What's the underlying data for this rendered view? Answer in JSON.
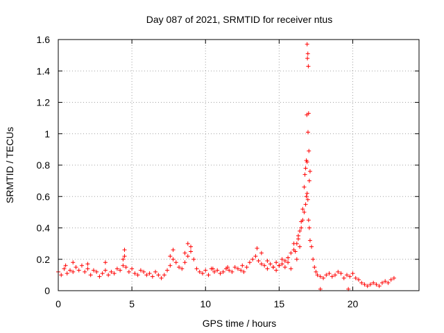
{
  "chart_data": {
    "type": "scatter",
    "title": "Day 087 of 2021, SRMTID for receiver ntus",
    "xlabel": "GPS time / hours",
    "ylabel": "SRMTID / TECUs",
    "xlim": [
      0,
      24.5
    ],
    "ylim": [
      0,
      1.6
    ],
    "xticks": [
      0,
      5,
      10,
      15,
      20
    ],
    "xtick_labels": [
      "0",
      "5",
      "10",
      "15",
      "20"
    ],
    "yticks": [
      0,
      0.2,
      0.4,
      0.6,
      0.8,
      1.0,
      1.2,
      1.4,
      1.6
    ],
    "ytick_labels": [
      "0",
      "0.2",
      "0.4",
      "0.6",
      "0.8",
      "1",
      "1.2",
      "1.4",
      "1.6"
    ],
    "grid": true,
    "marker": "+",
    "colors": {
      "points": "#ff0000",
      "axis": "#000000",
      "grid": "#a0a0a0"
    },
    "series": [
      {
        "name": "SRMTID",
        "x": [
          0.0,
          0.2,
          0.4,
          0.6,
          0.8,
          1.0,
          1.2,
          1.4,
          1.6,
          1.8,
          2.0,
          2.2,
          2.4,
          2.6,
          2.8,
          3.0,
          3.2,
          3.4,
          3.6,
          3.8,
          4.0,
          4.2,
          4.4,
          4.5,
          4.6,
          4.8,
          5.0,
          5.2,
          5.4,
          5.6,
          5.8,
          6.0,
          6.2,
          6.4,
          6.6,
          6.8,
          7.0,
          7.2,
          7.4,
          7.6,
          7.8,
          8.0,
          8.2,
          8.4,
          8.6,
          8.8,
          9.0,
          9.2,
          9.4,
          9.6,
          9.8,
          10.0,
          10.2,
          10.4,
          10.6,
          10.8,
          11.0,
          11.2,
          11.4,
          11.6,
          11.8,
          12.0,
          12.2,
          12.4,
          12.6,
          12.8,
          13.0,
          13.2,
          13.4,
          13.6,
          13.8,
          14.0,
          14.2,
          14.4,
          14.6,
          14.8,
          15.0,
          15.2,
          15.4,
          15.6,
          15.8,
          16.0,
          16.1,
          16.2,
          16.3,
          16.4,
          16.5,
          16.6,
          16.7,
          16.8,
          16.85,
          16.9,
          16.95,
          17.0,
          17.05,
          17.1,
          17.2,
          17.3,
          17.4,
          17.5,
          17.6,
          17.8,
          18.0,
          18.2,
          18.4,
          18.6,
          18.8,
          19.0,
          19.2,
          19.4,
          19.6,
          19.8,
          20.0,
          20.2,
          20.4,
          20.6,
          20.8,
          21.0,
          21.2,
          21.4,
          21.6,
          21.8,
          22.0,
          22.2,
          22.4,
          22.6,
          22.8,
          16.9,
          16.95,
          16.92,
          16.98,
          17.0,
          16.88,
          16.96,
          17.02,
          16.85,
          16.9,
          16.8,
          17.1,
          16.75,
          17.05,
          16.7,
          16.6,
          16.5,
          16.4,
          16.3,
          16.2,
          16.0,
          15.8,
          15.6,
          15.4,
          15.2,
          15.0,
          14.8,
          14.6,
          13.5,
          13.8,
          14.2,
          12.5,
          11.5,
          10.5,
          9.0,
          8.8,
          8.6,
          7.8,
          7.6,
          4.5,
          4.4,
          3.2,
          2.0,
          1.0,
          0.5,
          17.8,
          19.7
        ],
        "y": [
          0.12,
          0.1,
          0.14,
          0.11,
          0.13,
          0.12,
          0.15,
          0.13,
          0.16,
          0.12,
          0.14,
          0.1,
          0.13,
          0.12,
          0.09,
          0.11,
          0.13,
          0.1,
          0.12,
          0.11,
          0.14,
          0.13,
          0.16,
          0.22,
          0.15,
          0.12,
          0.14,
          0.11,
          0.1,
          0.13,
          0.12,
          0.1,
          0.11,
          0.09,
          0.12,
          0.1,
          0.08,
          0.1,
          0.13,
          0.16,
          0.2,
          0.18,
          0.15,
          0.14,
          0.18,
          0.22,
          0.25,
          0.2,
          0.14,
          0.12,
          0.11,
          0.13,
          0.1,
          0.14,
          0.12,
          0.13,
          0.11,
          0.12,
          0.14,
          0.13,
          0.12,
          0.15,
          0.14,
          0.13,
          0.12,
          0.15,
          0.18,
          0.2,
          0.22,
          0.19,
          0.17,
          0.16,
          0.14,
          0.17,
          0.15,
          0.13,
          0.16,
          0.2,
          0.15,
          0.18,
          0.14,
          0.3,
          0.25,
          0.2,
          0.35,
          0.28,
          0.4,
          0.45,
          0.5,
          0.55,
          0.6,
          0.62,
          0.58,
          0.45,
          0.4,
          0.32,
          0.28,
          0.2,
          0.15,
          0.12,
          0.1,
          0.09,
          0.08,
          0.1,
          0.11,
          0.09,
          0.1,
          0.12,
          0.11,
          0.08,
          0.1,
          0.09,
          0.11,
          0.08,
          0.07,
          0.05,
          0.04,
          0.03,
          0.04,
          0.05,
          0.04,
          0.03,
          0.05,
          0.06,
          0.05,
          0.07,
          0.08,
          1.57,
          1.51,
          1.48,
          1.43,
          1.13,
          1.12,
          1.01,
          0.89,
          0.83,
          0.82,
          0.78,
          0.76,
          0.74,
          0.7,
          0.66,
          0.52,
          0.44,
          0.38,
          0.33,
          0.3,
          0.26,
          0.24,
          0.21,
          0.19,
          0.17,
          0.16,
          0.18,
          0.15,
          0.27,
          0.24,
          0.19,
          0.16,
          0.15,
          0.14,
          0.28,
          0.3,
          0.24,
          0.26,
          0.22,
          0.26,
          0.2,
          0.18,
          0.17,
          0.18,
          0.16,
          0.01,
          0.01
        ]
      }
    ]
  }
}
